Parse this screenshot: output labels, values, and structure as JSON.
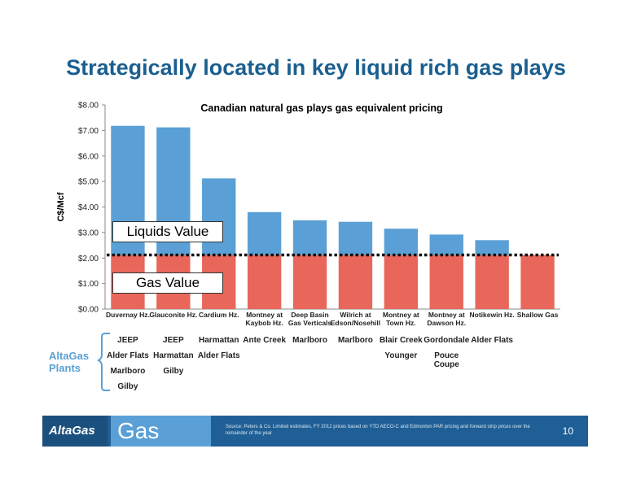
{
  "slide_title": "Strategically located in key liquid rich gas plays",
  "chart_data": {
    "type": "bar",
    "title": "Canadian natural gas plays gas equivalent pricing",
    "ylabel": "C$/Mcf",
    "ylim": [
      0,
      8
    ],
    "yticks": [
      "$0.00",
      "$1.00",
      "$2.00",
      "$3.00",
      "$4.00",
      "$5.00",
      "$6.00",
      "$7.00",
      "$8.00"
    ],
    "categories": [
      [
        "Duvernay Hz."
      ],
      [
        "Glauconite Hz."
      ],
      [
        "Cardium Hz."
      ],
      [
        "Montney at",
        "Kaybob Hz."
      ],
      [
        "Deep Basin",
        "Gas Verticals"
      ],
      [
        "Wilrich at",
        "Edson/Nosehill"
      ],
      [
        "Montney at",
        "Town Hz."
      ],
      [
        "Montney at",
        "Dawson Hz."
      ],
      [
        "Notikewin Hz."
      ],
      [
        "Shallow Gas"
      ]
    ],
    "series": [
      {
        "name": "Gas Value",
        "color": "#e8675a",
        "values": [
          2.12,
          2.12,
          2.12,
          2.12,
          2.12,
          2.12,
          2.12,
          2.12,
          2.12,
          2.12
        ]
      },
      {
        "name": "Liquids Value",
        "color": "#5aa0d6",
        "values": [
          5.06,
          5.0,
          3.0,
          1.68,
          1.36,
          1.3,
          1.03,
          0.8,
          0.58,
          0
        ]
      }
    ],
    "gas_value_line": 2.12,
    "grid": false
  },
  "callouts": {
    "liquids": "Liquids Value",
    "gas": "Gas Value"
  },
  "plants": {
    "label": "AltaGas Plants",
    "columns": [
      [
        "JEEP",
        "Alder Flats",
        "Marlboro",
        "Gilby"
      ],
      [
        "JEEP",
        "Harmattan",
        "Gilby"
      ],
      [
        "Harmattan",
        "Alder Flats"
      ],
      [
        "Ante Creek"
      ],
      [
        "Marlboro"
      ],
      [
        "Marlboro"
      ],
      [
        "Blair Creek",
        "Younger"
      ],
      [
        "Gordondale",
        "Pouce Coupe"
      ],
      [
        "Alder Flats"
      ],
      []
    ]
  },
  "footer": {
    "logo": "AltaGas",
    "division": "Gas",
    "source": "Source: Peters & Co. Limited estimates. FY 2012 prices based on YTD AECO-C and Edmonton PAR pricing and forward strip prices over the remainder of the year",
    "page": "10"
  }
}
